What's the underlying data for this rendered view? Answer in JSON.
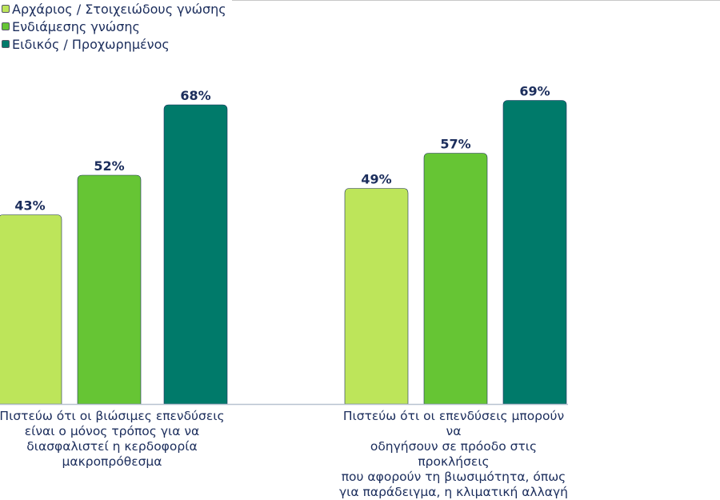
{
  "chart_data": {
    "type": "bar",
    "title": "",
    "xlabel": "",
    "ylabel": "",
    "ylim": [
      0,
      70
    ],
    "grid": false,
    "legend_placement": "top-left",
    "categories": [
      "Πιστεύω ότι οι βιώσιμες επενδύσεις είναι ο μόνος τρόπος για να διασφαλιστεί η κερδοφορία μακροπρόθεσμα",
      "Πιστεύω ότι οι επενδύσεις μπορούν να οδηγήσουν σε πρόοδο στις προκλήσεις που αφορούν τη βιωσιμότητα, όπως για παράδειγμα, η κλιματική αλλαγή"
    ],
    "category_lines": [
      [
        "Πιστεύω ότι οι βιώσιμες επενδύσεις",
        "είναι ο μόνος τρόπος για να",
        "διασφαλιστεί η κερδοφορία",
        "μακροπρόθεσμα"
      ],
      [
        "Πιστεύω ότι οι επενδύσεις μπορούν να",
        "οδηγήσουν σε πρόοδο στις προκλήσεις",
        "που αφορούν τη βιωσιμότητα, όπως",
        "για παράδειγμα, η κλιματική αλλαγή"
      ]
    ],
    "series": [
      {
        "name": "Αρχάριος / Στοιχειώδους γνώσης",
        "color": "#bde55a",
        "values": [
          43,
          49
        ],
        "labels": [
          "43%",
          "49%"
        ]
      },
      {
        "name": "Ενδιάμεσης γνώσης",
        "color": "#66c534",
        "values": [
          52,
          57
        ],
        "labels": [
          "52%",
          "57%"
        ]
      },
      {
        "name": "Ειδικός / Προχωρημένος",
        "color": "#007a6a",
        "values": [
          68,
          69
        ],
        "labels": [
          "68%",
          "69%"
        ]
      }
    ]
  }
}
